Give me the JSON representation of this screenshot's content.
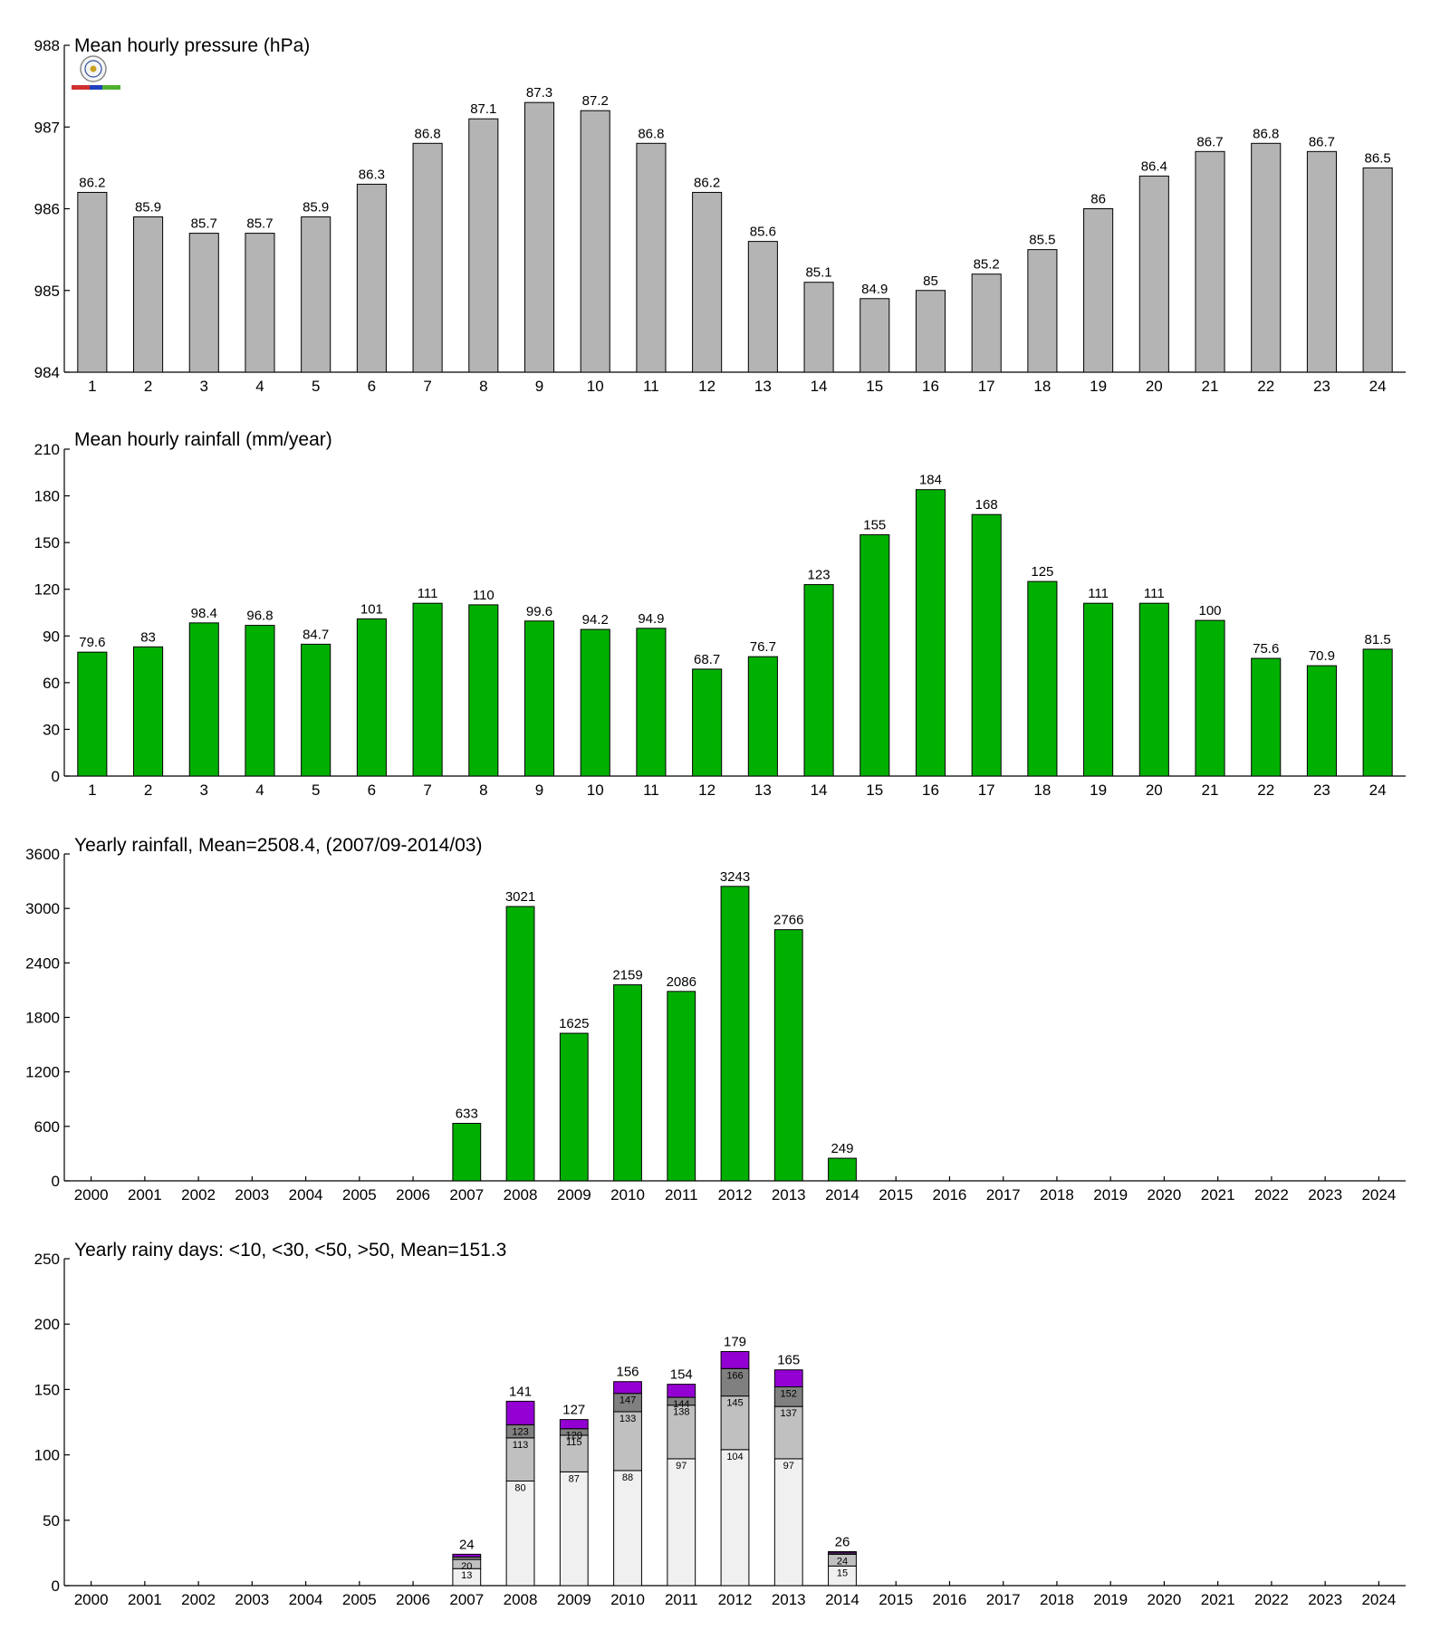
{
  "chart_data": [
    {
      "type": "bar",
      "title": "Mean hourly pressure (hPa)",
      "categories": [
        "1",
        "2",
        "3",
        "4",
        "5",
        "6",
        "7",
        "8",
        "9",
        "10",
        "11",
        "12",
        "13",
        "14",
        "15",
        "16",
        "17",
        "18",
        "19",
        "20",
        "21",
        "22",
        "23",
        "24"
      ],
      "values": [
        986.2,
        985.9,
        985.7,
        985.7,
        985.9,
        986.3,
        986.8,
        987.1,
        987.3,
        987.2,
        986.8,
        986.2,
        985.6,
        985.1,
        984.9,
        985.0,
        985.2,
        985.5,
        986.0,
        986.4,
        986.7,
        986.8,
        986.7,
        986.5
      ],
      "labels": [
        "86.2",
        "85.9",
        "85.7",
        "85.7",
        "85.9",
        "86.3",
        "86.8",
        "87.1",
        "87.3",
        "87.2",
        "86.8",
        "86.2",
        "85.6",
        "85.1",
        "84.9",
        "85",
        "85.2",
        "85.5",
        "86",
        "86.4",
        "86.7",
        "86.8",
        "86.7",
        "86.5"
      ],
      "ylim": [
        984,
        988
      ],
      "yticks": [
        "984",
        "985",
        "986",
        "987",
        "988"
      ],
      "color": "#b4b4b4",
      "grid": false
    },
    {
      "type": "bar",
      "title": "Mean hourly rainfall (mm/year)",
      "categories": [
        "1",
        "2",
        "3",
        "4",
        "5",
        "6",
        "7",
        "8",
        "9",
        "10",
        "11",
        "12",
        "13",
        "14",
        "15",
        "16",
        "17",
        "18",
        "19",
        "20",
        "21",
        "22",
        "23",
        "24"
      ],
      "values": [
        79.6,
        83,
        98.4,
        96.8,
        84.7,
        101,
        111,
        110,
        99.6,
        94.2,
        94.9,
        68.7,
        76.7,
        123,
        155,
        184,
        168,
        125,
        111,
        111,
        100,
        75.6,
        70.9,
        81.5
      ],
      "labels": [
        "79.6",
        "83",
        "98.4",
        "96.8",
        "84.7",
        "101",
        "111",
        "110",
        "99.6",
        "94.2",
        "94.9",
        "68.7",
        "76.7",
        "123",
        "155",
        "184",
        "168",
        "125",
        "111",
        "111",
        "100",
        "75.6",
        "70.9",
        "81.5"
      ],
      "ylim": [
        0,
        210
      ],
      "yticks": [
        "0",
        "30",
        "60",
        "90",
        "120",
        "150",
        "180",
        "210"
      ],
      "color": "#00b000",
      "grid": false
    },
    {
      "type": "bar",
      "title": "Yearly rainfall, Mean=2508.4, (2007/09-2014/03)",
      "categories": [
        "2000",
        "2001",
        "2002",
        "2003",
        "2004",
        "2005",
        "2006",
        "2007",
        "2008",
        "2009",
        "2010",
        "2011",
        "2012",
        "2013",
        "2014",
        "2015",
        "2016",
        "2017",
        "2018",
        "2019",
        "2020",
        "2021",
        "2022",
        "2023",
        "2024"
      ],
      "values": [
        null,
        null,
        null,
        null,
        null,
        null,
        null,
        633,
        3021,
        1625,
        2159,
        2086,
        3243,
        2766,
        249,
        null,
        null,
        null,
        null,
        null,
        null,
        null,
        null,
        null,
        null
      ],
      "labels": [
        "",
        "",
        "",
        "",
        "",
        "",
        "",
        "633",
        "3021",
        "1625",
        "2159",
        "2086",
        "3243",
        "2766",
        "249",
        "",
        "",
        "",
        "",
        "",
        "",
        "",
        "",
        "",
        ""
      ],
      "ylim": [
        0,
        3600
      ],
      "yticks": [
        "0",
        "600",
        "1200",
        "1800",
        "2400",
        "3000",
        "3600"
      ],
      "color": "#00b000",
      "grid": false
    },
    {
      "type": "bar",
      "stacked": true,
      "title": "Yearly rainy days: <10, <30, <50, >50, Mean=151.3",
      "categories": [
        "2000",
        "2001",
        "2002",
        "2003",
        "2004",
        "2005",
        "2006",
        "2007",
        "2008",
        "2009",
        "2010",
        "2011",
        "2012",
        "2013",
        "2014",
        "2015",
        "2016",
        "2017",
        "2018",
        "2019",
        "2020",
        "2021",
        "2022",
        "2023",
        "2024"
      ],
      "ylim": [
        0,
        250
      ],
      "yticks": [
        "0",
        "50",
        "100",
        "150",
        "200",
        "250"
      ],
      "colors": [
        "#f0f0f0",
        "#c0c0c0",
        "#808080",
        "#9400d3"
      ],
      "cumulative": [
        null,
        null,
        null,
        null,
        null,
        null,
        null,
        [
          13,
          20,
          22,
          24
        ],
        [
          80,
          113,
          123,
          141
        ],
        [
          87,
          115,
          120,
          127
        ],
        [
          88,
          133,
          147,
          156
        ],
        [
          97,
          138,
          144,
          154
        ],
        [
          104,
          145,
          166,
          179
        ],
        [
          97,
          137,
          152,
          165
        ],
        [
          15,
          24,
          25,
          26
        ],
        null,
        null,
        null,
        null,
        null,
        null,
        null,
        null,
        null,
        null
      ],
      "segment_labels": [
        null,
        null,
        null,
        null,
        null,
        null,
        null,
        [
          "13",
          "20",
          "",
          ""
        ],
        [
          "80",
          "113",
          "123",
          ""
        ],
        [
          "87",
          "115",
          "120",
          ""
        ],
        [
          "88",
          "133",
          "147",
          ""
        ],
        [
          "97",
          "138",
          "144",
          ""
        ],
        [
          "104",
          "145",
          "166",
          ""
        ],
        [
          "97",
          "137",
          "152",
          ""
        ],
        [
          "15",
          "24",
          "",
          ""
        ],
        null,
        null,
        null,
        null,
        null,
        null,
        null,
        null,
        null,
        null
      ],
      "totals": [
        "",
        "",
        "",
        "",
        "",
        "",
        "",
        "24",
        "141",
        "127",
        "156",
        "154",
        "179",
        "165",
        "26",
        "",
        "",
        "",
        "",
        "",
        "",
        "",
        "",
        "",
        ""
      ],
      "grid": false
    }
  ]
}
